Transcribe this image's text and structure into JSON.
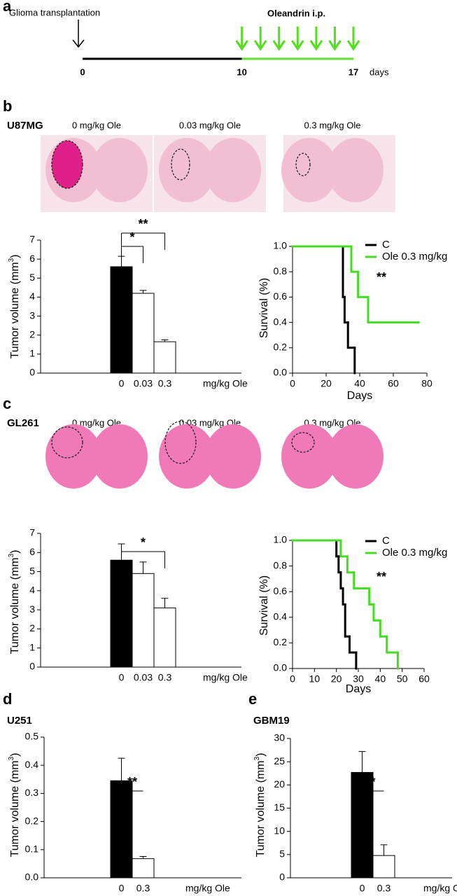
{
  "timeline": {
    "label": "a",
    "start_text": "Glioma transplantation",
    "treatment_text": "Oleandrin i.p.",
    "ticks": [
      0,
      10,
      17
    ],
    "unit": "days"
  },
  "panels": [
    {
      "label": "b",
      "cell_line": "U87MG",
      "images": [
        "0 mg/kg Ole",
        "0.03 mg/kg Ole",
        "0.3 mg/kg Ole"
      ]
    },
    {
      "label": "c",
      "cell_line": "GL261",
      "images": [
        "0 mg/kg Ole",
        "0.03 mg/kg Ole",
        "0.3 mg/kg Ole"
      ]
    },
    {
      "label": "d",
      "cell_line": "U251"
    },
    {
      "label": "e",
      "cell_line": "GBM19"
    }
  ],
  "chart_data": [
    {
      "type": "bar",
      "categories": [
        "0",
        "0.03",
        "0.3"
      ],
      "values": [
        5.6,
        4.2,
        1.65
      ],
      "errors": [
        0.55,
        0.15,
        0.1
      ],
      "colors": [
        "#000000",
        "#ffffff",
        "#ffffff"
      ],
      "ylim": [
        0,
        7
      ],
      "yticks": [
        0,
        1,
        2,
        3,
        4,
        5,
        6,
        7
      ],
      "y_label": [
        "Tumor volume (mm",
        "3",
        ")"
      ],
      "x_unit": "mg/kg Ole",
      "significance": [
        {
          "pair": [
            "0",
            "0.03"
          ],
          "label": "*"
        },
        {
          "pair": [
            "0",
            "0.3"
          ],
          "label": "**"
        }
      ]
    },
    {
      "type": "line",
      "step": true,
      "x_label": "Days",
      "y_label": "Survival (%)",
      "xlim": [
        0,
        80
      ],
      "xticks": [
        0,
        20,
        40,
        60,
        80
      ],
      "ylim": [
        0,
        1
      ],
      "yticks": [
        {
          "value": 0,
          "label": "0.0"
        },
        0.2,
        0.4,
        0.6,
        0.8,
        {
          "value": 1,
          "label": "1.0"
        }
      ],
      "legend": "upper right",
      "annotation": "**",
      "series": [
        {
          "name": "C",
          "color": "#000000",
          "x": [
            0,
            30,
            31,
            33,
            37
          ],
          "values": [
            1,
            0.6,
            0.4,
            0.2,
            0
          ]
        },
        {
          "name": "Ole 0.3 mg/kg",
          "color": "#44dd22",
          "x": [
            0,
            35,
            39,
            45,
            75
          ],
          "values": [
            1,
            0.8,
            0.6,
            0.4,
            0.4
          ]
        }
      ]
    },
    {
      "type": "bar",
      "categories": [
        "0",
        "0.03",
        "0.3"
      ],
      "values": [
        5.6,
        4.9,
        3.1
      ],
      "errors": [
        0.85,
        0.6,
        0.5
      ],
      "colors": [
        "#000000",
        "#ffffff",
        "#ffffff"
      ],
      "ylim": [
        0,
        7
      ],
      "yticks": [
        0,
        1,
        2,
        3,
        4,
        5,
        6,
        7
      ],
      "y_label": [
        "Tumor volume (mm",
        "3",
        ")"
      ],
      "x_unit": "mg/kg Ole",
      "significance": [
        {
          "pair": [
            "0",
            "0.3"
          ],
          "label": "*"
        }
      ]
    },
    {
      "type": "line",
      "step": true,
      "x_label": "Days",
      "y_label": "Survival (%)",
      "xlim": [
        0,
        60
      ],
      "xticks": [
        0,
        10,
        20,
        30,
        40,
        50,
        60
      ],
      "ylim": [
        0,
        1
      ],
      "yticks": [
        {
          "value": 0,
          "label": "0.0"
        },
        0.2,
        0.4,
        0.6,
        0.8,
        {
          "value": 1,
          "label": "1.0"
        }
      ],
      "legend": "upper right",
      "annotation": "**",
      "series": [
        {
          "name": "C",
          "color": "#000000",
          "x": [
            0,
            20,
            21,
            22,
            23,
            24,
            26,
            29
          ],
          "values": [
            1,
            0.875,
            0.75,
            0.625,
            0.5,
            0.25,
            0.125,
            0
          ]
        },
        {
          "name": "Ole 0.3 mg/kg",
          "color": "#44dd22",
          "x": [
            0,
            22,
            25,
            28,
            35,
            37,
            40,
            43,
            48
          ],
          "values": [
            1,
            0.875,
            0.75,
            0.625,
            0.5,
            0.375,
            0.25,
            0.125,
            0
          ]
        }
      ]
    },
    {
      "type": "bar",
      "categories": [
        "0",
        "0.3"
      ],
      "values": [
        0.345,
        0.068
      ],
      "errors": [
        0.08,
        0.008
      ],
      "colors": [
        "#000000",
        "#ffffff"
      ],
      "ylim": [
        0,
        0.5
      ],
      "yticks": [
        {
          "value": 0,
          "label": "0.0"
        },
        0.1,
        0.2,
        0.3,
        0.4,
        0.5
      ],
      "y_label": [
        "Tumor volume (mm",
        "3",
        ")"
      ],
      "x_unit": "mg/kg Ole",
      "significance": [
        {
          "pair": [
            "0",
            "0.3"
          ],
          "label": "**"
        }
      ]
    },
    {
      "type": "bar",
      "categories": [
        "0",
        "0.3"
      ],
      "values": [
        22.7,
        4.8
      ],
      "errors": [
        4.5,
        2.3
      ],
      "colors": [
        "#000000",
        "#ffffff"
      ],
      "ylim": [
        0,
        30
      ],
      "yticks": [
        0,
        5,
        10,
        15,
        20,
        25,
        30
      ],
      "y_label": [
        "Tumor volume (mm",
        "3",
        ")"
      ],
      "x_unit": "mg/kg Ole",
      "significance": [
        {
          "pair": [
            "0",
            "0.3"
          ],
          "label": "*"
        }
      ]
    }
  ]
}
